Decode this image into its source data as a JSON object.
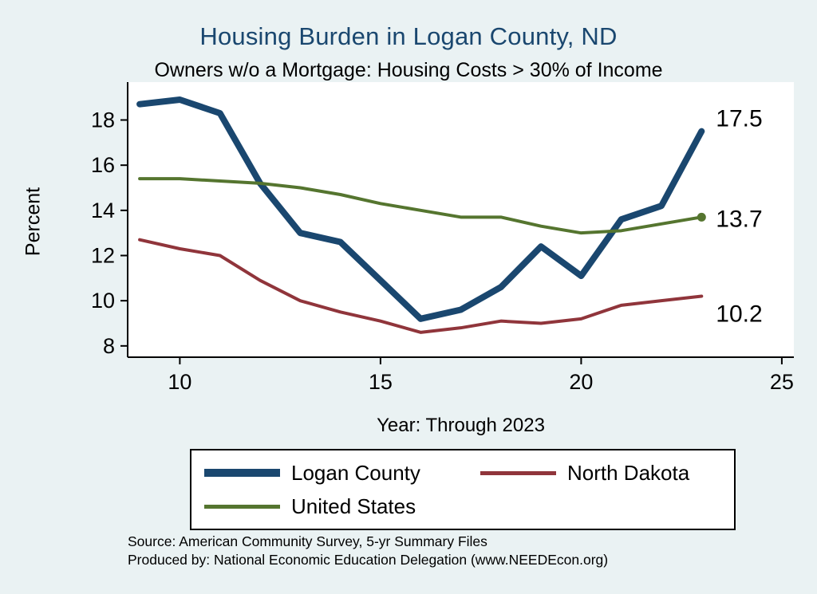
{
  "header": {
    "title": "Housing Burden in Logan County, ND",
    "subtitle": "Owners w/o a Mortgage: Housing Costs > 30% of Income"
  },
  "footer": {
    "source": "Source: American Community Survey, 5-yr Summary Files",
    "produced_by": "Produced by: National Economic Education Delegation (www.NEEDEcon.org)"
  },
  "colors": {
    "background": "#eaf2f3",
    "plot_background": "#ffffff",
    "axis": "#000000",
    "title_text": "#1a476f"
  },
  "chart_data": {
    "type": "line",
    "title": "Housing Burden in Logan County, ND",
    "subtitle": "Owners w/o a Mortgage: Housing Costs > 30% of Income",
    "xlabel": "Year: Through 2023",
    "ylabel": "Percent",
    "x": [
      9,
      10,
      11,
      12,
      13,
      14,
      15,
      16,
      17,
      18,
      19,
      20,
      21,
      22,
      23
    ],
    "series": [
      {
        "name": "Logan County",
        "color": "#1a476f",
        "width": 8,
        "values": [
          18.7,
          18.9,
          18.3,
          15.2,
          13.0,
          12.6,
          10.9,
          9.2,
          9.6,
          10.6,
          12.4,
          11.1,
          13.6,
          14.2,
          17.5
        ],
        "end_label": "17.5",
        "end_label_dy": -16,
        "end_marker": false
      },
      {
        "name": "North Dakota",
        "color": "#90353b",
        "width": 4,
        "values": [
          12.7,
          12.3,
          12.0,
          10.9,
          10.0,
          9.5,
          9.1,
          8.6,
          8.8,
          9.1,
          9.0,
          9.2,
          9.8,
          10.0,
          10.2
        ],
        "end_label": "10.2",
        "end_label_dy": 22,
        "end_marker": false
      },
      {
        "name": "United States",
        "color": "#55752f",
        "width": 4,
        "values": [
          15.4,
          15.4,
          15.3,
          15.2,
          15.0,
          14.7,
          14.3,
          14.0,
          13.7,
          13.7,
          13.3,
          13.0,
          13.1,
          13.4,
          13.7
        ],
        "end_label": "13.7",
        "end_label_dy": 2,
        "end_marker": true
      }
    ],
    "xticks": [
      10,
      15,
      20,
      25
    ],
    "yticks": [
      8,
      10,
      12,
      14,
      16,
      18
    ],
    "xlim": [
      8.7,
      25.3
    ],
    "ylim": [
      7.5,
      19.5
    ],
    "grid": false,
    "legend_position": "bottom"
  }
}
